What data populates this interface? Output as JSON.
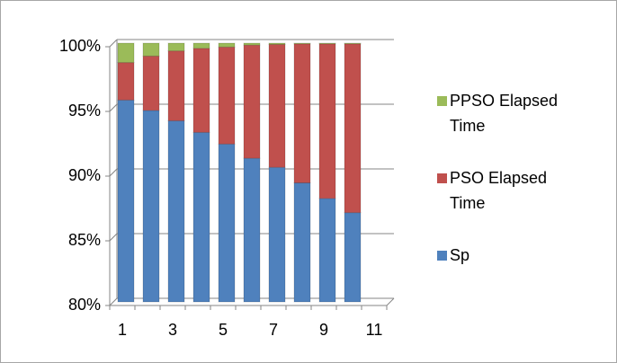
{
  "chart_data": {
    "type": "stacked_bar_100",
    "categories": [
      "1",
      null,
      "3",
      null,
      "5",
      null,
      "7",
      null,
      "9",
      null,
      "11"
    ],
    "series": [
      {
        "name": "Sp",
        "color": "#4f81bd",
        "values": [
          95.6,
          94.8,
          94.0,
          93.1,
          92.2,
          91.1,
          90.4,
          89.2,
          88.0,
          86.9,
          null
        ]
      },
      {
        "name": "PSO Elapsed Time",
        "color": "#c0504d",
        "values": [
          2.9,
          4.2,
          5.4,
          6.5,
          7.5,
          8.75,
          9.5,
          10.75,
          11.95,
          13.05,
          null
        ]
      },
      {
        "name": "PPSO Elapsed Time",
        "color": "#9bbb59",
        "values": [
          1.5,
          1.0,
          0.6,
          0.4,
          0.3,
          0.15,
          0.1,
          0.05,
          0.05,
          0.05,
          null
        ]
      }
    ],
    "ylim": [
      80,
      100
    ],
    "yticks": [
      {
        "value": 80,
        "label": "80%"
      },
      {
        "value": 85,
        "label": "85%"
      },
      {
        "value": 90,
        "label": "90%"
      },
      {
        "value": 95,
        "label": "95%"
      },
      {
        "value": 100,
        "label": "100%"
      }
    ],
    "grid": true,
    "legend": "right"
  }
}
